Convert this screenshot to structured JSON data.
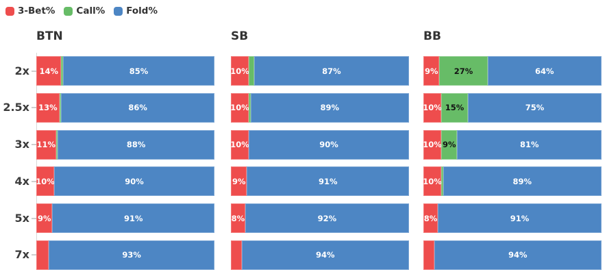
{
  "legend": {
    "items": [
      {
        "label": "3-Bet%",
        "color": "#EE4D4D"
      },
      {
        "label": "Call%",
        "color": "#67BC67"
      },
      {
        "label": "Fold%",
        "color": "#4D86C4"
      }
    ]
  },
  "chart_data": {
    "type": "bar",
    "orientation": "horizontal",
    "stacked": true,
    "grid": false,
    "legend_position": "top-left",
    "xlim": [
      0,
      100
    ],
    "categories": [
      "2x",
      "2.5x",
      "3x",
      "4x",
      "5x",
      "7x"
    ],
    "series": [
      "3-Bet%",
      "Call%",
      "Fold%"
    ],
    "series_colors": [
      "#EE4D4D",
      "#67BC67",
      "#4D86C4"
    ],
    "series_text_colors": [
      "#ffffff",
      "#141414",
      "#ffffff"
    ],
    "groups": [
      {
        "title": "BTN",
        "rows": [
          {
            "values": [
              14,
              1,
              85
            ],
            "labels": [
              "14%",
              "",
              "85%"
            ]
          },
          {
            "values": [
              13,
              1,
              86
            ],
            "labels": [
              "13%",
              "",
              "86%"
            ]
          },
          {
            "values": [
              11,
              1,
              88
            ],
            "labels": [
              "11%",
              "",
              "88%"
            ]
          },
          {
            "values": [
              10,
              0,
              90
            ],
            "labels": [
              "10%",
              "",
              "90%"
            ]
          },
          {
            "values": [
              9,
              0,
              91
            ],
            "labels": [
              "9%",
              "",
              "91%"
            ]
          },
          {
            "values": [
              7,
              0,
              93
            ],
            "labels": [
              "",
              "",
              "93%"
            ]
          }
        ]
      },
      {
        "title": "SB",
        "rows": [
          {
            "values": [
              10,
              3,
              87
            ],
            "labels": [
              "10%",
              "",
              "87%"
            ]
          },
          {
            "values": [
              10,
              1,
              89
            ],
            "labels": [
              "10%",
              "",
              "89%"
            ]
          },
          {
            "values": [
              10,
              0,
              90
            ],
            "labels": [
              "10%",
              "",
              "90%"
            ]
          },
          {
            "values": [
              9,
              0,
              91
            ],
            "labels": [
              "9%",
              "",
              "91%"
            ]
          },
          {
            "values": [
              8,
              0,
              92
            ],
            "labels": [
              "8%",
              "",
              "92%"
            ]
          },
          {
            "values": [
              6,
              0,
              94
            ],
            "labels": [
              "",
              "",
              "94%"
            ]
          }
        ]
      },
      {
        "title": "BB",
        "rows": [
          {
            "values": [
              9,
              27,
              64
            ],
            "labels": [
              "9%",
              "27%",
              "64%"
            ]
          },
          {
            "values": [
              10,
              15,
              75
            ],
            "labels": [
              "10%",
              "15%",
              "75%"
            ]
          },
          {
            "values": [
              10,
              9,
              81
            ],
            "labels": [
              "10%",
              "9%",
              "81%"
            ]
          },
          {
            "values": [
              10,
              1,
              89
            ],
            "labels": [
              "10%",
              "",
              "89%"
            ]
          },
          {
            "values": [
              8,
              0,
              91
            ],
            "labels": [
              "8%",
              "",
              "91%"
            ]
          },
          {
            "values": [
              6,
              0,
              94
            ],
            "labels": [
              "",
              "",
              "94%"
            ]
          }
        ]
      }
    ]
  }
}
